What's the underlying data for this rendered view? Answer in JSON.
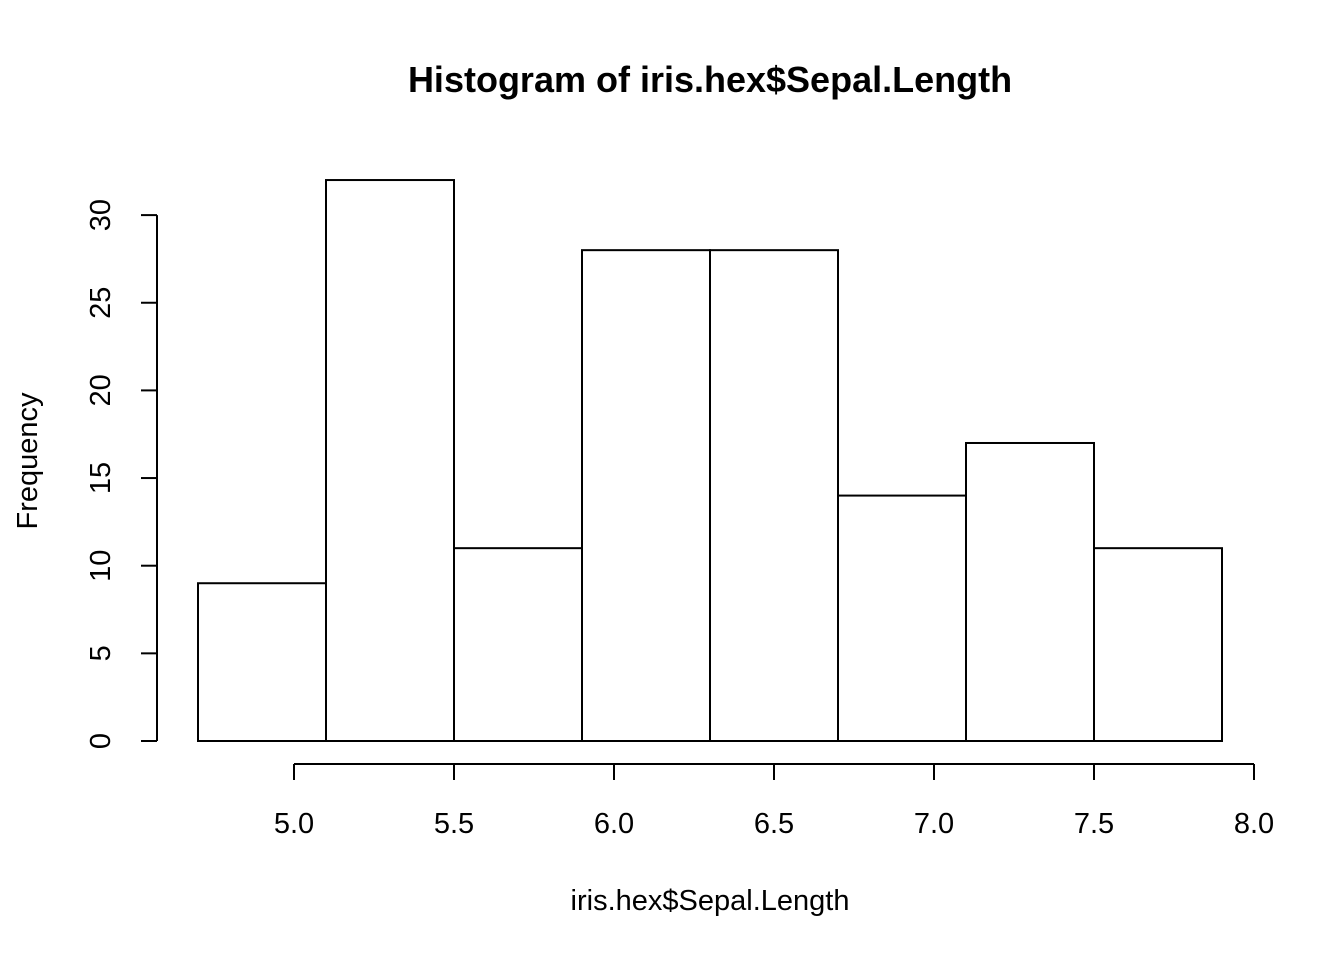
{
  "chart_data": {
    "type": "bar",
    "title": "Histogram of iris.hex$Sepal.Length",
    "xlabel": "iris.hex$Sepal.Length",
    "ylabel": "Frequency",
    "bins": [
      {
        "start": 4.7,
        "end": 5.1,
        "value": 9
      },
      {
        "start": 5.1,
        "end": 5.5,
        "value": 32
      },
      {
        "start": 5.5,
        "end": 5.9,
        "value": 11
      },
      {
        "start": 5.9,
        "end": 6.3,
        "value": 28
      },
      {
        "start": 6.3,
        "end": 6.7,
        "value": 28
      },
      {
        "start": 6.7,
        "end": 7.1,
        "value": 14
      },
      {
        "start": 7.1,
        "end": 7.5,
        "value": 17
      },
      {
        "start": 7.5,
        "end": 7.9,
        "value": 11
      }
    ],
    "xlim": [
      4.7,
      7.9
    ],
    "ylim": [
      0,
      32
    ],
    "x_ticks": [
      5.0,
      5.5,
      6.0,
      6.5,
      7.0,
      7.5,
      8.0
    ],
    "x_tick_labels": [
      "5.0",
      "5.5",
      "6.0",
      "6.5",
      "7.0",
      "7.5",
      "8.0"
    ],
    "y_ticks": [
      0,
      5,
      10,
      15,
      20,
      25,
      30
    ],
    "y_tick_labels": [
      "0",
      "5",
      "10",
      "15",
      "20",
      "25",
      "30"
    ],
    "grid": false,
    "fill_color": "#ffffff",
    "stroke_color": "#000000"
  }
}
